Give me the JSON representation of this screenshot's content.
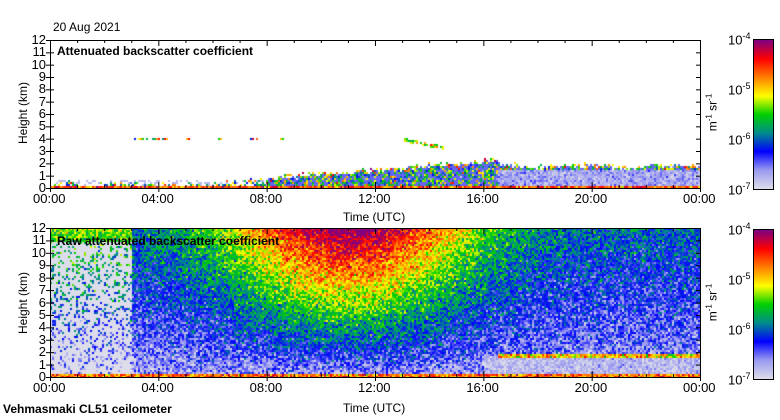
{
  "header": {
    "date": "20 Aug 2021"
  },
  "footer": {
    "instrument": "Vehmasmaki CL51 ceilometer"
  },
  "chart_data": [
    {
      "type": "heatmap",
      "title": "Attenuated backscatter coefficient",
      "xlabel": "Time (UTC)",
      "ylabel": "Height (km)",
      "xlim_hours": [
        0,
        24
      ],
      "ylim": [
        0,
        12
      ],
      "x_ticks": [
        "00:00",
        "04:00",
        "08:00",
        "12:00",
        "16:00",
        "20:00",
        "00:00"
      ],
      "y_ticks": [
        "0",
        "1",
        "2",
        "3",
        "4",
        "5",
        "6",
        "7",
        "8",
        "9",
        "10",
        "11",
        "12"
      ],
      "colorbar": {
        "label": "m-1 sr-1",
        "label_main": "m",
        "exp1": "-1",
        "label_sr": " sr",
        "exp2": "-1",
        "scale": "log",
        "range": [
          1e-07,
          0.0001
        ],
        "ticks": [
          {
            "base": "10",
            "exp": "-4"
          },
          {
            "base": "10",
            "exp": "-5"
          },
          {
            "base": "10",
            "exp": "-6"
          },
          {
            "base": "10",
            "exp": "-7"
          }
        ]
      },
      "features": {
        "cloud_layer_4km_hours": [
          [
            3.1,
            3.6
          ],
          [
            3.7,
            4.3
          ],
          [
            5.0,
            5.2
          ],
          [
            6.2,
            6.3
          ],
          [
            6.6,
            6.7
          ],
          [
            7.3,
            7.7
          ],
          [
            8.4,
            8.6
          ]
        ],
        "cloud_13_15h_km": [
          3.4,
          4.0
        ],
        "boundary_layer_top_km": {
          "00:00": 0.5,
          "08:00": 0.8,
          "12:00": 1.5,
          "16:00": 2.2,
          "20:00": 1.8,
          "24:00": 1.8
        }
      }
    },
    {
      "type": "heatmap",
      "title": "Raw attenuated backscatter coefficient",
      "xlabel": "Time (UTC)",
      "ylabel": "Height (km)",
      "xlim_hours": [
        0,
        24
      ],
      "ylim": [
        0,
        12
      ],
      "x_ticks": [
        "00:00",
        "04:00",
        "08:00",
        "12:00",
        "16:00",
        "20:00",
        "00:00"
      ],
      "y_ticks": [
        "0",
        "1",
        "2",
        "3",
        "4",
        "5",
        "6",
        "7",
        "8",
        "9",
        "10",
        "11",
        "12"
      ],
      "colorbar": {
        "label": "m-1 sr-1",
        "label_main": "m",
        "exp1": "-1",
        "label_sr": " sr",
        "exp2": "-1",
        "scale": "log",
        "range": [
          1e-07,
          0.0001
        ],
        "ticks": [
          {
            "base": "10",
            "exp": "-4"
          },
          {
            "base": "10",
            "exp": "-5"
          },
          {
            "base": "10",
            "exp": "-6"
          },
          {
            "base": "10",
            "exp": "-7"
          }
        ]
      }
    }
  ],
  "colors": {
    "scale": [
      "#dcdcea",
      "#9898f0",
      "#0000ff",
      "#008c8c",
      "#00d000",
      "#ffff00",
      "#ff8000",
      "#ff0000",
      "#800080"
    ]
  }
}
